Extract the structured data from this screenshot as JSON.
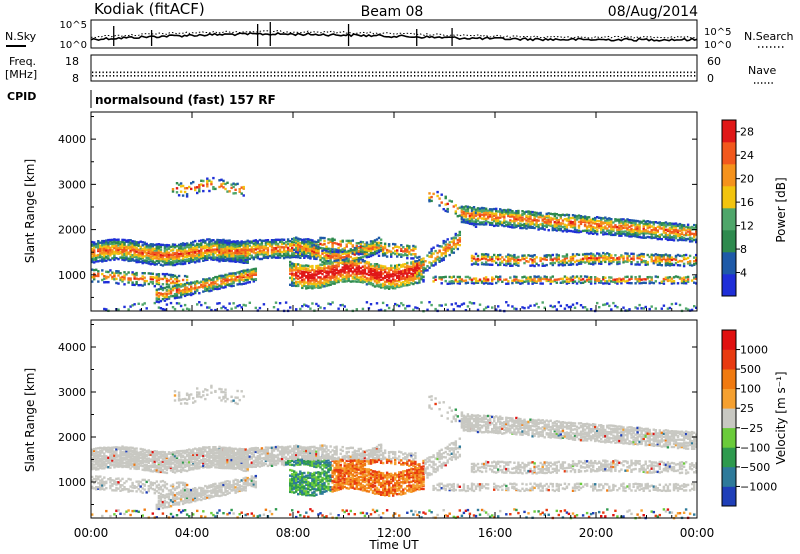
{
  "header": {
    "station": "Kodiak (fitACF)",
    "beam": "Beam 08",
    "date": "08/Aug/2014"
  },
  "chart_data": [
    {
      "panel": "noise",
      "type": "line",
      "left_label": "N.Sky",
      "right_label": "N.Search",
      "left_ticks": [
        "10^5",
        "10^0"
      ],
      "right_ticks": [
        "10^5",
        "10^0"
      ],
      "log_scale": true,
      "series": [
        {
          "name": "N.Sky",
          "style": "solid"
        },
        {
          "name": "N.Search",
          "style": "dotted"
        }
      ]
    },
    {
      "panel": "frequency",
      "type": "line",
      "left_label": "Freq.",
      "left_unit": "[MHz]",
      "right_label": "Nave",
      "left_ticks": [
        18,
        8
      ],
      "right_ticks": [
        60,
        0
      ],
      "cpid_label": "CPID",
      "cpid_value": "normalsound (fast) 157 RF",
      "series": [
        {
          "name": "Freq.",
          "style": "dotted",
          "y": 10
        },
        {
          "name": "Nave",
          "style": "dotted",
          "y": 20
        }
      ]
    },
    {
      "panel": "power",
      "type": "heatmap",
      "ylabel": "Slant Range [km]",
      "yticks": [
        1000,
        2000,
        3000,
        4000
      ],
      "ylim": [
        200,
        4600
      ],
      "xlim": [
        0,
        24
      ],
      "colorbar_label": "Power [dB]",
      "colorbar_ticks": [
        4,
        8,
        12,
        16,
        20,
        24,
        28
      ],
      "colorbar_range": [
        0,
        30
      ],
      "colorbar_colors": [
        "#1f2fd8",
        "#1e5aa8",
        "#2e8a4e",
        "#4fa66a",
        "#f2c40e",
        "#f5921c",
        "#f2581d",
        "#e01818"
      ]
    },
    {
      "panel": "velocity",
      "type": "heatmap",
      "ylabel": "Slant Range [km]",
      "yticks": [
        1000,
        2000,
        3000,
        4000
      ],
      "ylim": [
        200,
        4600
      ],
      "xlim": [
        0,
        24
      ],
      "xlabel": "Time UT",
      "xticks": [
        "00:00",
        "04:00",
        "08:00",
        "12:00",
        "16:00",
        "20:00",
        "00:00"
      ],
      "colorbar_label": "Velocity [m s⁻¹]",
      "colorbar_ticks": [
        "1000",
        "500",
        "100",
        "25",
        "−25",
        "−100",
        "−500",
        "−1000"
      ],
      "colorbar_colors": [
        "#1f3fb8",
        "#2e7a9a",
        "#2e9a4e",
        "#6acb3a",
        "#c8c8c2",
        "#f5a030",
        "#f07a10",
        "#e83a10",
        "#e01010"
      ]
    }
  ]
}
